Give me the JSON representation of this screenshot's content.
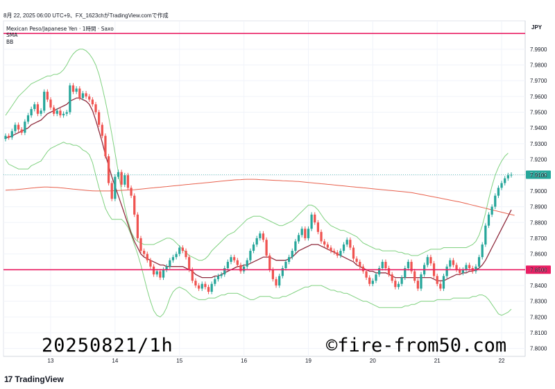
{
  "header": {
    "created_line": "8月 22, 2025 06:00 UTC+9、FX_1623chがTradingView.comで作成"
  },
  "legend": {
    "symbol": "Mexican Peso/Japanese Yen · 1時間 · Saxo",
    "indicator_1": "SMA",
    "indicator_2": "BB"
  },
  "annotations": {
    "left": "20250821/1h",
    "right": "©fire-from50.com"
  },
  "branding": {
    "logo": "17",
    "name": "TradingView"
  },
  "colors": {
    "up": "#26a69a",
    "down": "#ef5350",
    "sma_short": "#8e2a3c",
    "sma_long": "#e8604c",
    "bollinger": "#7fd17f",
    "hline": "#e91e63",
    "last_price_bg": "#26a69a"
  },
  "chart_data": {
    "type": "candlestick",
    "currency": "JPY",
    "y_ticks": [
      "7.9900",
      "7.9800",
      "7.9700",
      "7.9600",
      "7.9500",
      "7.9400",
      "7.9300",
      "7.9200",
      "7.9100",
      "7.9000",
      "7.8900",
      "7.8800",
      "7.8700",
      "7.8600",
      "7.8500",
      "7.8400",
      "7.8300",
      "7.8200",
      "7.8100",
      "7.8000"
    ],
    "ylim": [
      7.795,
      8.008
    ],
    "x_ticks": [
      {
        "label": "13",
        "index": 14
      },
      {
        "label": "14",
        "index": 34
      },
      {
        "label": "15",
        "index": 54
      },
      {
        "label": "16",
        "index": 74
      },
      {
        "label": "19",
        "index": 94
      },
      {
        "label": "20",
        "index": 114
      },
      {
        "label": "21",
        "index": 134
      },
      {
        "label": "22",
        "index": 154
      }
    ],
    "last_price": "7.9103",
    "horizontal_lines": [
      {
        "value": 8.0,
        "label": ""
      },
      {
        "value": 7.85,
        "label": "7.8500"
      }
    ],
    "closes": [
      7.935,
      7.934,
      7.938,
      7.942,
      7.939,
      7.937,
      7.944,
      7.948,
      7.952,
      7.955,
      7.949,
      7.951,
      7.963,
      7.958,
      7.953,
      7.949,
      7.951,
      7.948,
      7.949,
      7.95,
      7.967,
      7.963,
      7.965,
      7.959,
      7.962,
      7.96,
      7.958,
      7.955,
      7.95,
      7.942,
      7.935,
      7.922,
      7.905,
      7.895,
      7.909,
      7.912,
      7.904,
      7.91,
      7.902,
      7.897,
      7.885,
      7.87,
      7.862,
      7.86,
      7.856,
      7.852,
      7.847,
      7.849,
      7.845,
      7.85,
      7.852,
      7.856,
      7.858,
      7.86,
      7.864,
      7.862,
      7.858,
      7.85,
      7.843,
      7.84,
      7.838,
      7.841,
      7.839,
      7.836,
      7.841,
      7.844,
      7.846,
      7.847,
      7.851,
      7.855,
      7.858,
      7.856,
      7.853,
      7.849,
      7.852,
      7.856,
      7.862,
      7.866,
      7.87,
      7.873,
      7.869,
      7.859,
      7.85,
      7.844,
      7.84,
      7.846,
      7.851,
      7.855,
      7.858,
      7.862,
      7.868,
      7.872,
      7.876,
      7.87,
      7.876,
      7.885,
      7.88,
      7.874,
      7.868,
      7.866,
      7.864,
      7.862,
      7.861,
      7.859,
      7.862,
      7.866,
      7.869,
      7.864,
      7.857,
      7.855,
      7.852,
      7.849,
      7.845,
      7.841,
      7.843,
      7.847,
      7.851,
      7.855,
      7.851,
      7.847,
      7.843,
      7.839,
      7.841,
      7.845,
      7.851,
      7.855,
      7.849,
      7.843,
      7.838,
      7.847,
      7.853,
      7.858,
      7.854,
      7.846,
      7.841,
      7.838,
      7.846,
      7.852,
      7.856,
      7.853,
      7.85,
      7.848,
      7.85,
      7.853,
      7.851,
      7.849,
      7.852,
      7.858,
      7.866,
      7.878,
      7.885,
      7.89,
      7.897,
      7.902,
      7.905,
      7.908,
      7.91,
      7.9103
    ],
    "sma_short": [
      7.934,
      7.934,
      7.935,
      7.936,
      7.937,
      7.938,
      7.939,
      7.94,
      7.942,
      7.943,
      7.944,
      7.945,
      7.947,
      7.949,
      7.95,
      7.951,
      7.952,
      7.953,
      7.954,
      7.955,
      7.957,
      7.958,
      7.959,
      7.959,
      7.958,
      7.957,
      7.955,
      7.951,
      7.945,
      7.938,
      7.931,
      7.923,
      7.916,
      7.909,
      7.903,
      7.897,
      7.891,
      7.885,
      7.879,
      7.873,
      7.868,
      7.864,
      7.86,
      7.858,
      7.857,
      7.856,
      7.855,
      7.854,
      7.853,
      7.853,
      7.852,
      7.852,
      7.852,
      7.852,
      7.852,
      7.852,
      7.851,
      7.85,
      7.849,
      7.847,
      7.846,
      7.845,
      7.845,
      7.845,
      7.845,
      7.846,
      7.846,
      7.847,
      7.848,
      7.849,
      7.85,
      7.851,
      7.852,
      7.852,
      7.853,
      7.853,
      7.854,
      7.855,
      7.856,
      7.857,
      7.858,
      7.858,
      7.858,
      7.857,
      7.856,
      7.856,
      7.856,
      7.856,
      7.857,
      7.858,
      7.86,
      7.862,
      7.863,
      7.864,
      7.865,
      7.866,
      7.866,
      7.866,
      7.865,
      7.864,
      7.863,
      7.862,
      7.861,
      7.86,
      7.859,
      7.858,
      7.857,
      7.856,
      7.855,
      7.853,
      7.852,
      7.851,
      7.85,
      7.849,
      7.849,
      7.848,
      7.848,
      7.848,
      7.848,
      7.847,
      7.846,
      7.845,
      7.845,
      7.845,
      7.845,
      7.845,
      7.845,
      7.845,
      7.845,
      7.845,
      7.845,
      7.845,
      7.845,
      7.844,
      7.843,
      7.843,
      7.843,
      7.844,
      7.845,
      7.846,
      7.847,
      7.847,
      7.848,
      7.848,
      7.849,
      7.849,
      7.85,
      7.851,
      7.853,
      7.856,
      7.86,
      7.864,
      7.868,
      7.872,
      7.876,
      7.88,
      7.884,
      7.888
    ],
    "sma_long": [
      7.9005,
      7.9006,
      7.9007,
      7.9008,
      7.901,
      7.9012,
      7.9014,
      7.9016,
      7.9018,
      7.902,
      7.9022,
      7.9024,
      7.9025,
      7.9025,
      7.9024,
      7.9023,
      7.9022,
      7.902,
      7.9018,
      7.9016,
      7.9014,
      7.9012,
      7.901,
      7.9008,
      7.9006,
      7.9004,
      7.9002,
      7.9001,
      7.9,
      7.9,
      7.9,
      7.9,
      7.9,
      7.9001,
      7.9002,
      7.9003,
      7.9004,
      7.9005,
      7.9006,
      7.9007,
      7.9008,
      7.901,
      7.9012,
      7.9014,
      7.9016,
      7.9018,
      7.902,
      7.9022,
      7.9024,
      7.9026,
      7.9028,
      7.903,
      7.9032,
      7.9034,
      7.9036,
      7.9038,
      7.904,
      7.9042,
      7.9044,
      7.9046,
      7.9048,
      7.905,
      7.9052,
      7.9054,
      7.9056,
      7.9058,
      7.906,
      7.9062,
      7.9064,
      7.9066,
      7.9068,
      7.907,
      7.9071,
      7.9072,
      7.9073,
      7.9074,
      7.9074,
      7.9074,
      7.9073,
      7.9072,
      7.9071,
      7.907,
      7.9069,
      7.9068,
      7.9067,
      7.9066,
      7.9065,
      7.9064,
      7.9063,
      7.9062,
      7.9061,
      7.906,
      7.9058,
      7.9056,
      7.9054,
      7.9052,
      7.905,
      7.9048,
      7.9046,
      7.9044,
      7.9042,
      7.904,
      7.9038,
      7.9036,
      7.9034,
      7.9032,
      7.903,
      7.9028,
      7.9026,
      7.9024,
      7.9022,
      7.902,
      7.9018,
      7.9016,
      7.9014,
      7.9012,
      7.901,
      7.9008,
      7.9006,
      7.9004,
      7.9002,
      7.9,
      7.8998,
      7.8996,
      7.8994,
      7.8992,
      7.899,
      7.8986,
      7.8982,
      7.8978,
      7.8974,
      7.897,
      7.8966,
      7.8962,
      7.8958,
      7.8954,
      7.895,
      7.8946,
      7.8942,
      7.8938,
      7.8934,
      7.893,
      7.8925,
      7.892,
      7.8915,
      7.891,
      7.8905,
      7.89,
      7.8895,
      7.889,
      7.8885,
      7.888,
      7.8875,
      7.887,
      7.8865,
      7.886,
      7.8855,
      7.885,
      7.8845
    ],
    "bb_upper": [
      7.948,
      7.951,
      7.954,
      7.957,
      7.96,
      7.962,
      7.964,
      7.966,
      7.968,
      7.969,
      7.97,
      7.971,
      7.972,
      7.973,
      7.973,
      7.974,
      7.974,
      7.975,
      7.977,
      7.98,
      7.984,
      7.987,
      7.989,
      7.99,
      7.99,
      7.989,
      7.987,
      7.984,
      7.98,
      7.974,
      7.966,
      7.957,
      7.947,
      7.936,
      7.924,
      7.912,
      7.9,
      7.89,
      7.881,
      7.874,
      7.87,
      7.868,
      7.867,
      7.866,
      7.866,
      7.866,
      7.866,
      7.867,
      7.868,
      7.869,
      7.87,
      7.87,
      7.869,
      7.867,
      7.865,
      7.863,
      7.861,
      7.859,
      7.858,
      7.857,
      7.856,
      7.856,
      7.857,
      7.859,
      7.862,
      7.864,
      7.866,
      7.868,
      7.87,
      7.872,
      7.873,
      7.874,
      7.876,
      7.878,
      7.88,
      7.882,
      7.883,
      7.884,
      7.884,
      7.884,
      7.883,
      7.882,
      7.881,
      7.88,
      7.879,
      7.878,
      7.878,
      7.879,
      7.88,
      7.881,
      7.883,
      7.885,
      7.887,
      7.889,
      7.891,
      7.891,
      7.89,
      7.888,
      7.885,
      7.882,
      7.88,
      7.878,
      7.877,
      7.876,
      7.875,
      7.875,
      7.874,
      7.873,
      7.872,
      7.871,
      7.869,
      7.867,
      7.866,
      7.865,
      7.864,
      7.863,
      7.863,
      7.862,
      7.862,
      7.862,
      7.862,
      7.862,
      7.861,
      7.861,
      7.86,
      7.86,
      7.859,
      7.859,
      7.859,
      7.86,
      7.861,
      7.862,
      7.863,
      7.863,
      7.863,
      7.863,
      7.864,
      7.864,
      7.864,
      7.864,
      7.864,
      7.864,
      7.864,
      7.864,
      7.865,
      7.866,
      7.868,
      7.872,
      7.878,
      7.886,
      7.895,
      7.903,
      7.91,
      7.915,
      7.919,
      7.922,
      7.924
    ],
    "bb_lower": [
      7.92,
      7.917,
      7.916,
      7.915,
      7.914,
      7.914,
      7.914,
      7.914,
      7.916,
      7.917,
      7.918,
      7.919,
      7.922,
      7.925,
      7.927,
      7.928,
      7.929,
      7.93,
      7.931,
      7.93,
      7.93,
      7.929,
      7.929,
      7.928,
      7.926,
      7.925,
      7.923,
      7.918,
      7.91,
      7.902,
      7.896,
      7.889,
      7.885,
      7.882,
      7.882,
      7.882,
      7.882,
      7.88,
      7.877,
      7.872,
      7.866,
      7.86,
      7.853,
      7.845,
      7.837,
      7.83,
      7.824,
      7.821,
      7.82,
      7.822,
      7.826,
      7.832,
      7.836,
      7.838,
      7.839,
      7.838,
      7.837,
      7.835,
      7.833,
      7.832,
      7.831,
      7.831,
      7.831,
      7.832,
      7.832,
      7.832,
      7.833,
      7.834,
      7.834,
      7.835,
      7.835,
      7.835,
      7.835,
      7.834,
      7.833,
      7.832,
      7.831,
      7.831,
      7.832,
      7.833,
      7.833,
      7.833,
      7.833,
      7.832,
      7.832,
      7.832,
      7.833,
      7.833,
      7.834,
      7.835,
      7.836,
      7.837,
      7.838,
      7.839,
      7.839,
      7.84,
      7.84,
      7.84,
      7.84,
      7.839,
      7.838,
      7.837,
      7.837,
      7.836,
      7.836,
      7.835,
      7.835,
      7.834,
      7.833,
      7.832,
      7.831,
      7.83,
      7.83,
      7.829,
      7.828,
      7.827,
      7.826,
      7.826,
      7.826,
      7.826,
      7.826,
      7.826,
      7.826,
      7.826,
      7.827,
      7.827,
      7.828,
      7.828,
      7.829,
      7.83,
      7.83,
      7.83,
      7.83,
      7.83,
      7.831,
      7.831,
      7.831,
      7.831,
      7.831,
      7.832,
      7.832,
      7.832,
      7.832,
      7.832,
      7.832,
      7.833,
      7.833,
      7.834,
      7.834,
      7.833,
      7.831,
      7.828,
      7.825,
      7.822,
      7.821,
      7.822,
      7.823,
      7.825
    ]
  }
}
